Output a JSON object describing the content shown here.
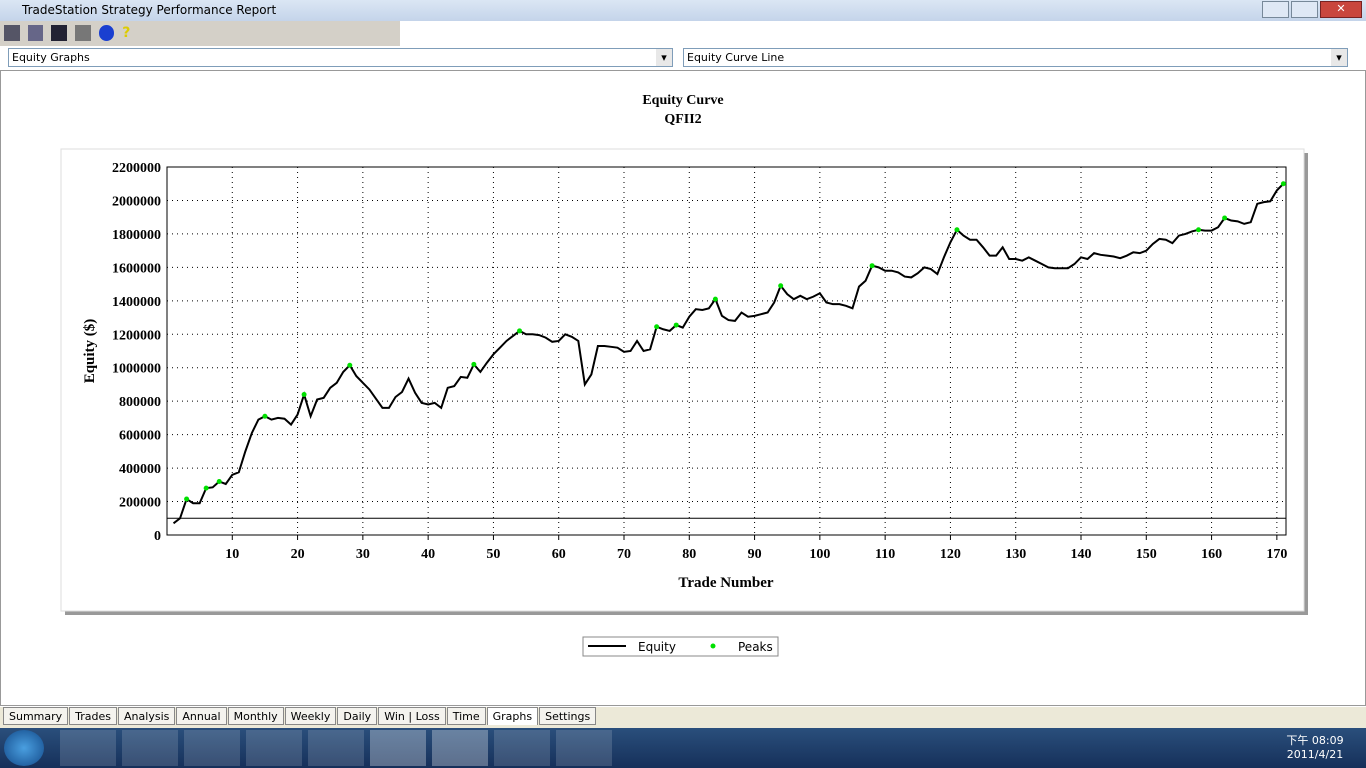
{
  "window": {
    "title": "TradeStation Strategy Performance Report"
  },
  "selectors": [
    "Equity Graphs",
    "Equity Curve Line"
  ],
  "chart_data": {
    "type": "line",
    "title": "Equity Curve",
    "subtitle": "QFII2",
    "xlabel": "Trade Number",
    "ylabel": "Equity ($)",
    "xlim": [
      0,
      171.4
    ],
    "ylim": [
      0,
      2200000
    ],
    "xticks": [
      10,
      20,
      30,
      40,
      50,
      60,
      70,
      80,
      90,
      100,
      110,
      120,
      130,
      140,
      150,
      160,
      170
    ],
    "yticks": [
      0,
      200000,
      400000,
      600000,
      800000,
      1000000,
      1200000,
      1400000,
      1600000,
      1800000,
      2000000,
      2200000
    ],
    "grid": true,
    "baseline": 100000,
    "legend": "bottom",
    "series": [
      {
        "name": "Equity",
        "color": "#000000",
        "x": [
          1,
          2,
          3,
          4,
          5,
          6,
          7,
          8,
          9,
          10,
          11,
          12,
          13,
          14,
          15,
          16,
          17,
          18,
          19,
          20,
          21,
          22,
          23,
          24,
          25,
          26,
          27,
          28,
          29,
          30,
          31,
          32,
          33,
          34,
          35,
          36,
          37,
          38,
          39,
          40,
          41,
          42,
          43,
          44,
          45,
          46,
          47,
          48,
          49,
          50,
          51,
          52,
          53,
          54,
          55,
          56,
          57,
          58,
          59,
          60,
          61,
          62,
          63,
          64,
          65,
          66,
          67,
          68,
          69,
          70,
          71,
          72,
          73,
          74,
          75,
          76,
          77,
          78,
          79,
          80,
          81,
          82,
          83,
          84,
          85,
          86,
          87,
          88,
          89,
          90,
          91,
          92,
          93,
          94,
          95,
          96,
          97,
          98,
          99,
          100,
          101,
          102,
          103,
          104,
          105,
          106,
          107,
          108,
          109,
          110,
          111,
          112,
          113,
          114,
          115,
          116,
          117,
          118,
          119,
          120,
          121,
          122,
          123,
          124,
          125,
          126,
          127,
          128,
          129,
          130,
          131,
          132,
          133,
          134,
          135,
          136,
          137,
          138,
          139,
          140,
          141,
          142,
          143,
          144,
          145,
          146,
          147,
          148,
          149,
          150,
          151,
          152,
          153,
          154,
          155,
          156,
          157,
          158,
          159,
          160,
          161,
          162,
          163,
          164,
          165,
          166,
          167,
          168,
          169,
          170,
          171
        ],
        "values": [
          70000,
          100000,
          215000,
          190000,
          190000,
          280000,
          285000,
          320000,
          305000,
          360000,
          375000,
          500000,
          610000,
          690000,
          710000,
          690000,
          700000,
          695000,
          660000,
          720000,
          840000,
          710000,
          810000,
          820000,
          880000,
          910000,
          975000,
          1015000,
          950000,
          910000,
          870000,
          815000,
          760000,
          760000,
          825000,
          855000,
          935000,
          850000,
          790000,
          780000,
          790000,
          760000,
          880000,
          890000,
          945000,
          940000,
          1020000,
          975000,
          1030000,
          1080000,
          1120000,
          1160000,
          1190000,
          1220000,
          1200000,
          1200000,
          1195000,
          1180000,
          1155000,
          1160000,
          1200000,
          1185000,
          1160000,
          900000,
          960000,
          1130000,
          1130000,
          1125000,
          1120000,
          1095000,
          1100000,
          1160000,
          1100000,
          1110000,
          1245000,
          1230000,
          1220000,
          1255000,
          1240000,
          1305000,
          1350000,
          1345000,
          1355000,
          1410000,
          1310000,
          1285000,
          1280000,
          1330000,
          1305000,
          1310000,
          1320000,
          1330000,
          1390000,
          1490000,
          1440000,
          1410000,
          1430000,
          1410000,
          1425000,
          1445000,
          1390000,
          1380000,
          1380000,
          1370000,
          1355000,
          1485000,
          1520000,
          1610000,
          1600000,
          1580000,
          1580000,
          1570000,
          1545000,
          1540000,
          1565000,
          1600000,
          1590000,
          1560000,
          1660000,
          1750000,
          1825000,
          1790000,
          1765000,
          1765000,
          1720000,
          1670000,
          1670000,
          1720000,
          1650000,
          1650000,
          1640000,
          1660000,
          1640000,
          1620000,
          1600000,
          1595000,
          1595000,
          1595000,
          1620000,
          1660000,
          1650000,
          1685000,
          1675000,
          1670000,
          1665000,
          1655000,
          1670000,
          1690000,
          1685000,
          1700000,
          1740000,
          1770000,
          1765000,
          1745000,
          1790000,
          1800000,
          1815000,
          1825000,
          1820000,
          1820000,
          1840000,
          1895000,
          1880000,
          1875000,
          1860000,
          1870000,
          1980000,
          1990000,
          1995000,
          2060000,
          2100000
        ]
      },
      {
        "name": "Peaks",
        "color": "#00e000",
        "type": "scatter",
        "x": [
          3,
          6,
          8,
          15,
          21,
          28,
          47,
          54,
          75,
          78,
          84,
          94,
          108,
          121,
          158,
          162,
          171
        ],
        "values": [
          215000,
          280000,
          320000,
          710000,
          840000,
          1015000,
          1020000,
          1220000,
          1245000,
          1255000,
          1410000,
          1490000,
          1610000,
          1825000,
          1825000,
          1895000,
          2100000
        ]
      }
    ]
  },
  "tabs": [
    "Summary",
    "Trades",
    "Analysis",
    "Annual",
    "Monthly",
    "Weekly",
    "Daily",
    "Win | Loss",
    "Time",
    "Graphs",
    "Settings"
  ],
  "active_tab": "Graphs",
  "clock": {
    "time": "下午 08:09",
    "date": "2011/4/21"
  }
}
